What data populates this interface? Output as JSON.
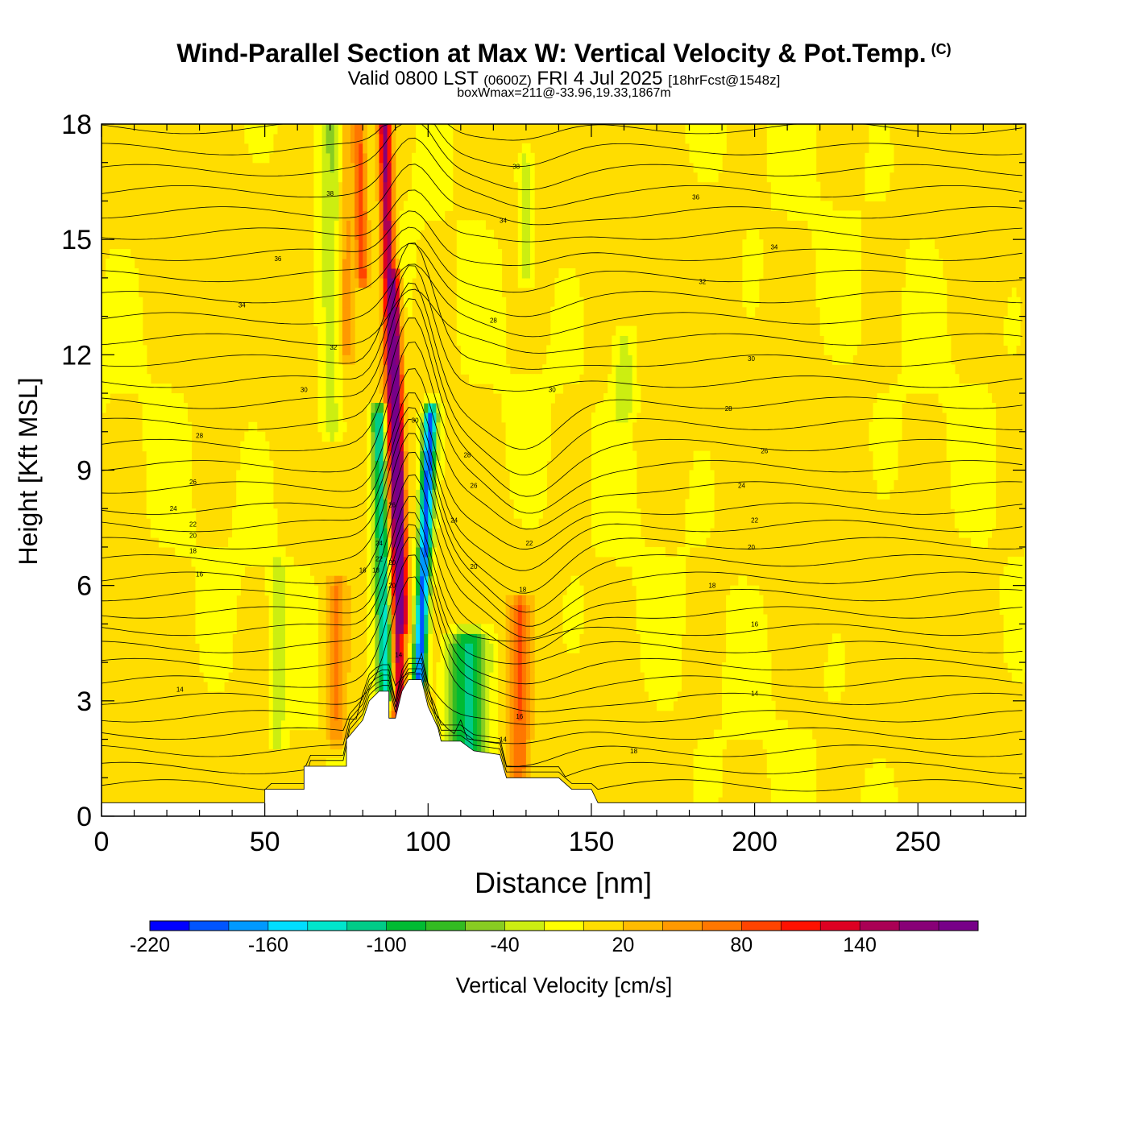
{
  "title": {
    "main": "Wind-Parallel Section at Max W: Vertical Velocity & Pot.Temp.",
    "copyright": "(C)",
    "valid": "Valid 0800 LST",
    "utc": "(0600Z)",
    "date": "FRI 4 Jul 2025",
    "forecast": "[18hrFcst@1548z]",
    "boxwmax": "boxWmax=211@-33.96,19.33,1867m"
  },
  "chart_data": {
    "type": "heatmap",
    "xlabel": "Distance [nm]",
    "ylabel": "Height [Kft MSL]",
    "xlim": [
      0,
      283
    ],
    "ylim": [
      0,
      18
    ],
    "x_ticks": [
      0,
      50,
      100,
      150,
      200,
      250
    ],
    "y_ticks": [
      0,
      3,
      6,
      9,
      12,
      15,
      18
    ],
    "colorbar": {
      "label": "Vertical Velocity [cm/s]",
      "min": -220,
      "max": 200,
      "step": 20,
      "tick_values": [
        -220,
        -160,
        -100,
        -40,
        20,
        80,
        140
      ],
      "colors": [
        "#0000ff",
        "#0055ff",
        "#0099ff",
        "#00ddff",
        "#00e5cc",
        "#00cc88",
        "#00bb33",
        "#33bb22",
        "#88cc22",
        "#ccee11",
        "#ffff00",
        "#ffdd00",
        "#ffbb00",
        "#ff9900",
        "#ff7700",
        "#ff4400",
        "#ff1100",
        "#dd0022",
        "#aa0055",
        "#880077",
        "#770088"
      ]
    },
    "terrain_kft": [
      [
        0,
        0.35
      ],
      [
        50,
        0.35
      ],
      [
        50,
        0.7
      ],
      [
        62,
        0.7
      ],
      [
        62,
        1.3
      ],
      [
        75,
        1.3
      ],
      [
        75,
        2.0
      ],
      [
        80,
        2.5
      ],
      [
        82,
        3.0
      ],
      [
        85,
        3.25
      ],
      [
        88,
        3.25
      ],
      [
        88,
        2.55
      ],
      [
        90,
        2.55
      ],
      [
        92,
        3.25
      ],
      [
        94,
        3.55
      ],
      [
        98,
        3.55
      ],
      [
        100,
        2.85
      ],
      [
        103,
        2.3
      ],
      [
        104,
        1.95
      ],
      [
        110,
        1.95
      ],
      [
        114,
        1.7
      ],
      [
        122,
        1.6
      ],
      [
        124,
        1.0
      ],
      [
        140,
        1.0
      ],
      [
        144,
        0.7
      ],
      [
        150,
        0.7
      ],
      [
        152,
        0.35
      ],
      [
        283,
        0.35
      ]
    ],
    "velocity_features": [
      {
        "x": 90,
        "ymin": 2.6,
        "ymax": 18,
        "w": 160,
        "width_nm": 2.0
      },
      {
        "x": 92,
        "ymin": 5.0,
        "ymax": 14,
        "w": 120,
        "width_nm": 1.5
      },
      {
        "x": 86,
        "ymin": 3.2,
        "ymax": 10.5,
        "w": -130,
        "width_nm": 2.5
      },
      {
        "x": 99,
        "ymin": 3.5,
        "ymax": 10.5,
        "w": -200,
        "width_nm": 2.0
      },
      {
        "x": 112,
        "ymin": 1.6,
        "ymax": 4.6,
        "w": -110,
        "width_nm": 6.0
      },
      {
        "x": 128,
        "ymin": 1.0,
        "ymax": 5.5,
        "w": 70,
        "width_nm": 3.0
      },
      {
        "x": 72,
        "ymin": 2.0,
        "ymax": 6.0,
        "w": 60,
        "width_nm": 3.0
      },
      {
        "x": 70,
        "ymin": 10.0,
        "ymax": 18,
        "w": -40,
        "width_nm": 3.0
      },
      {
        "x": 75,
        "ymin": 12.0,
        "ymax": 18,
        "w": 40,
        "width_nm": 2.0
      },
      {
        "x": 82,
        "ymin": 14.0,
        "ymax": 18,
        "w": 90,
        "width_nm": 2.0
      },
      {
        "x": 54,
        "ymin": 2.0,
        "ymax": 6.5,
        "w": -40,
        "width_nm": 2.0
      },
      {
        "x": 160,
        "ymin": 10.5,
        "ymax": 12.5,
        "w": -40,
        "width_nm": 3.0
      },
      {
        "x": 130,
        "ymin": 14.0,
        "ymax": 17.0,
        "w": -35,
        "width_nm": 2.0
      }
    ],
    "theta_contour_labels": [
      {
        "x": 70,
        "y": 16.2,
        "text": "38"
      },
      {
        "x": 54,
        "y": 14.5,
        "text": "36"
      },
      {
        "x": 43,
        "y": 13.3,
        "text": "34"
      },
      {
        "x": 71,
        "y": 12.2,
        "text": "32"
      },
      {
        "x": 62,
        "y": 11.1,
        "text": "30"
      },
      {
        "x": 30,
        "y": 9.9,
        "text": "28"
      },
      {
        "x": 28,
        "y": 8.7,
        "text": "26"
      },
      {
        "x": 22,
        "y": 8.0,
        "text": "24"
      },
      {
        "x": 28,
        "y": 7.6,
        "text": "22"
      },
      {
        "x": 28,
        "y": 7.3,
        "text": "20"
      },
      {
        "x": 28,
        "y": 6.9,
        "text": "18"
      },
      {
        "x": 30,
        "y": 6.3,
        "text": "16"
      },
      {
        "x": 24,
        "y": 3.3,
        "text": "14"
      },
      {
        "x": 127,
        "y": 16.9,
        "text": "38"
      },
      {
        "x": 123,
        "y": 15.5,
        "text": "34"
      },
      {
        "x": 120,
        "y": 12.9,
        "text": "28"
      },
      {
        "x": 138,
        "y": 11.1,
        "text": "30"
      },
      {
        "x": 96,
        "y": 10.3,
        "text": "30"
      },
      {
        "x": 112,
        "y": 9.4,
        "text": "28"
      },
      {
        "x": 114,
        "y": 8.6,
        "text": "26"
      },
      {
        "x": 108,
        "y": 7.7,
        "text": "24"
      },
      {
        "x": 131,
        "y": 7.1,
        "text": "22"
      },
      {
        "x": 114,
        "y": 6.5,
        "text": "20"
      },
      {
        "x": 129,
        "y": 5.9,
        "text": "18"
      },
      {
        "x": 128,
        "y": 2.6,
        "text": "16"
      },
      {
        "x": 123,
        "y": 2.0,
        "text": "14"
      },
      {
        "x": 163,
        "y": 1.7,
        "text": "18"
      },
      {
        "x": 182,
        "y": 16.1,
        "text": "36"
      },
      {
        "x": 206,
        "y": 14.8,
        "text": "34"
      },
      {
        "x": 184,
        "y": 13.9,
        "text": "32"
      },
      {
        "x": 199,
        "y": 11.9,
        "text": "30"
      },
      {
        "x": 192,
        "y": 10.6,
        "text": "28"
      },
      {
        "x": 203,
        "y": 9.5,
        "text": "26"
      },
      {
        "x": 196,
        "y": 8.6,
        "text": "24"
      },
      {
        "x": 200,
        "y": 7.7,
        "text": "22"
      },
      {
        "x": 199,
        "y": 7.0,
        "text": "20"
      },
      {
        "x": 187,
        "y": 6.0,
        "text": "18"
      },
      {
        "x": 200,
        "y": 5.0,
        "text": "16"
      },
      {
        "x": 200,
        "y": 3.2,
        "text": "14"
      },
      {
        "x": 89,
        "y": 8.1,
        "text": "26"
      },
      {
        "x": 85,
        "y": 7.1,
        "text": "24"
      },
      {
        "x": 85,
        "y": 6.7,
        "text": "22"
      },
      {
        "x": 89,
        "y": 6.6,
        "text": "20"
      },
      {
        "x": 84,
        "y": 6.4,
        "text": "18"
      },
      {
        "x": 89,
        "y": 6.0,
        "text": "20"
      },
      {
        "x": 80,
        "y": 6.4,
        "text": "16"
      },
      {
        "x": 91,
        "y": 4.2,
        "text": "14"
      }
    ]
  }
}
